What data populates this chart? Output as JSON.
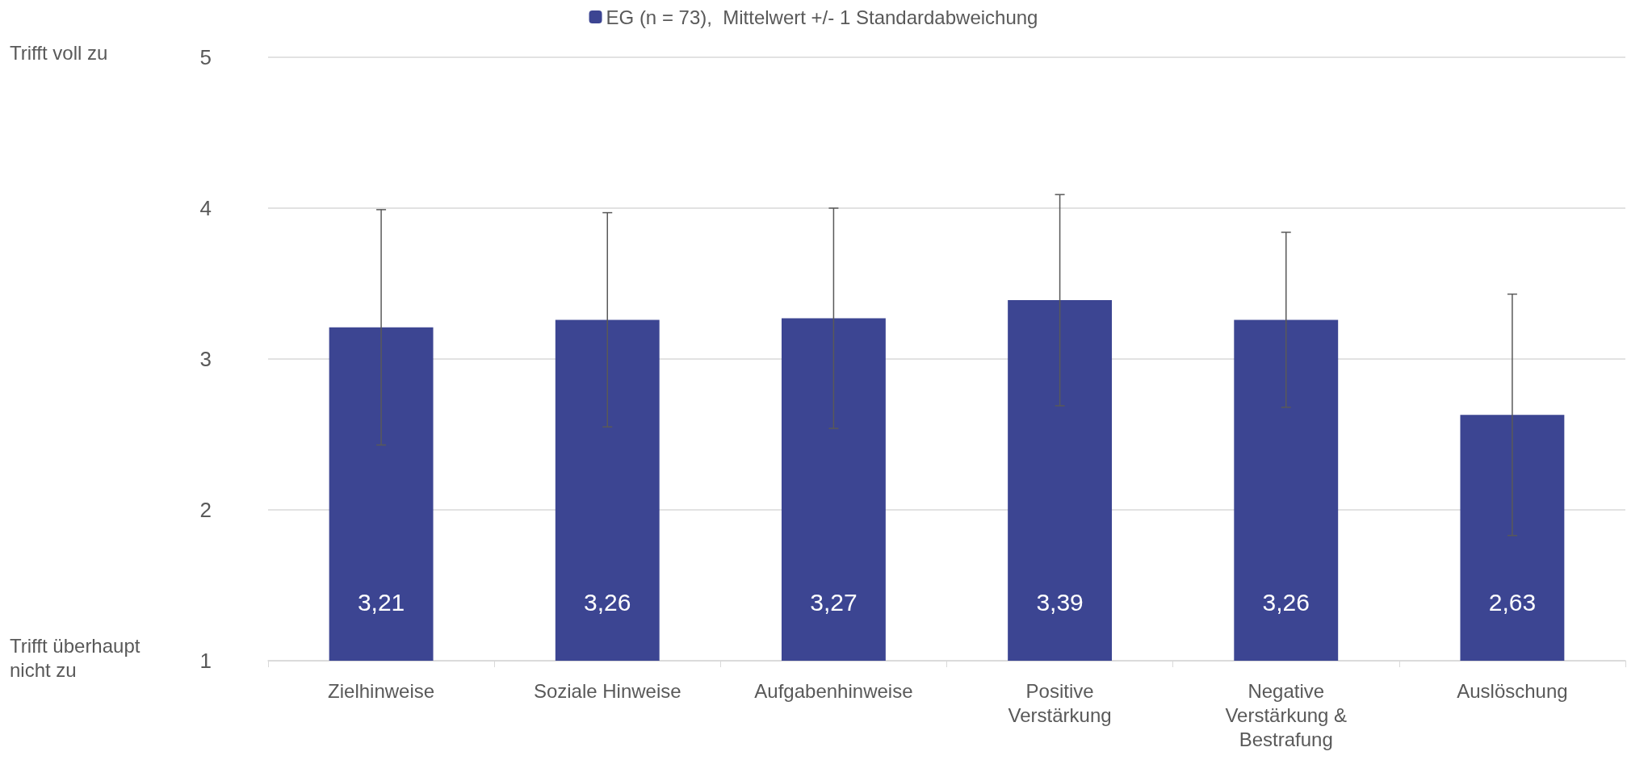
{
  "chart_data": {
    "type": "bar",
    "categories": [
      "Zielhinweise",
      "Soziale Hinweise",
      "Aufgabenhinweise",
      "Positive\nVerstärkung",
      "Negative\nVerstärkung &\nBestrafung",
      "Auslöschung"
    ],
    "series": [
      {
        "name": "EG (n = 73),  Mittelwert +/- 1 Standardabweichung",
        "color": "#3c4592",
        "values": [
          3.21,
          3.26,
          3.27,
          3.39,
          3.26,
          2.63
        ],
        "errors": [
          0.78,
          0.71,
          0.73,
          0.7,
          0.58,
          0.8
        ],
        "value_labels": [
          "3,21",
          "3,26",
          "3,27",
          "3,39",
          "3,26",
          "2,63"
        ]
      }
    ],
    "ylim": [
      1,
      5
    ],
    "yticks": [
      1,
      2,
      3,
      4,
      5
    ],
    "grid": "y",
    "legend": "top",
    "annotations": [
      "Trifft voll zu",
      "Trifft überhaupt\nnicht zu"
    ]
  }
}
